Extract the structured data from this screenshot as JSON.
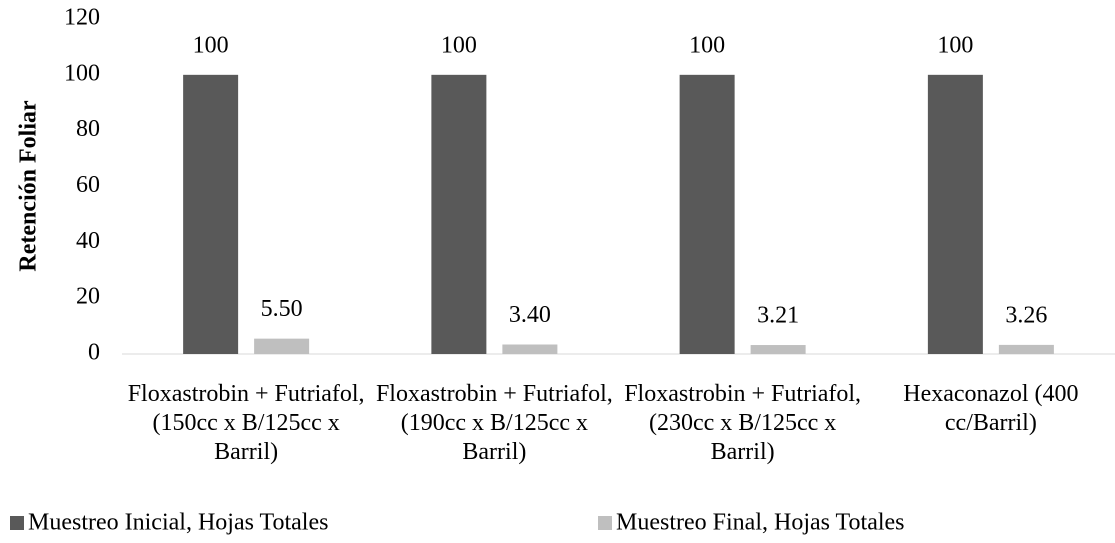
{
  "chart_data": {
    "type": "bar",
    "y_label": "Retención Foliar",
    "categories": [
      "Floxastrobin + Futriafol, (150cc x B/125cc x Barril)",
      "Floxastrobin + Futriafol, (190cc x B/125cc x Barril)",
      "Floxastrobin + Futriafol, (230cc x B/125cc x Barril)",
      "Hexaconazol (400 cc/Barril)"
    ],
    "series": [
      {
        "name": "Muestreo Inicial, Hojas Totales",
        "color": "#595959",
        "values": [
          100,
          100,
          100,
          100
        ]
      },
      {
        "name": "Muestreo Final, Hojas Totales",
        "color": "#bfbfbf",
        "values": [
          5.5,
          3.4,
          3.21,
          3.26
        ],
        "value_labels": [
          "5.50",
          "3.40",
          "3.21",
          "3.26"
        ]
      }
    ],
    "ylim": [
      0,
      120
    ],
    "yticks": [
      0,
      20,
      40,
      60,
      80,
      100,
      120
    ],
    "grid": false,
    "legend": "bottom"
  }
}
